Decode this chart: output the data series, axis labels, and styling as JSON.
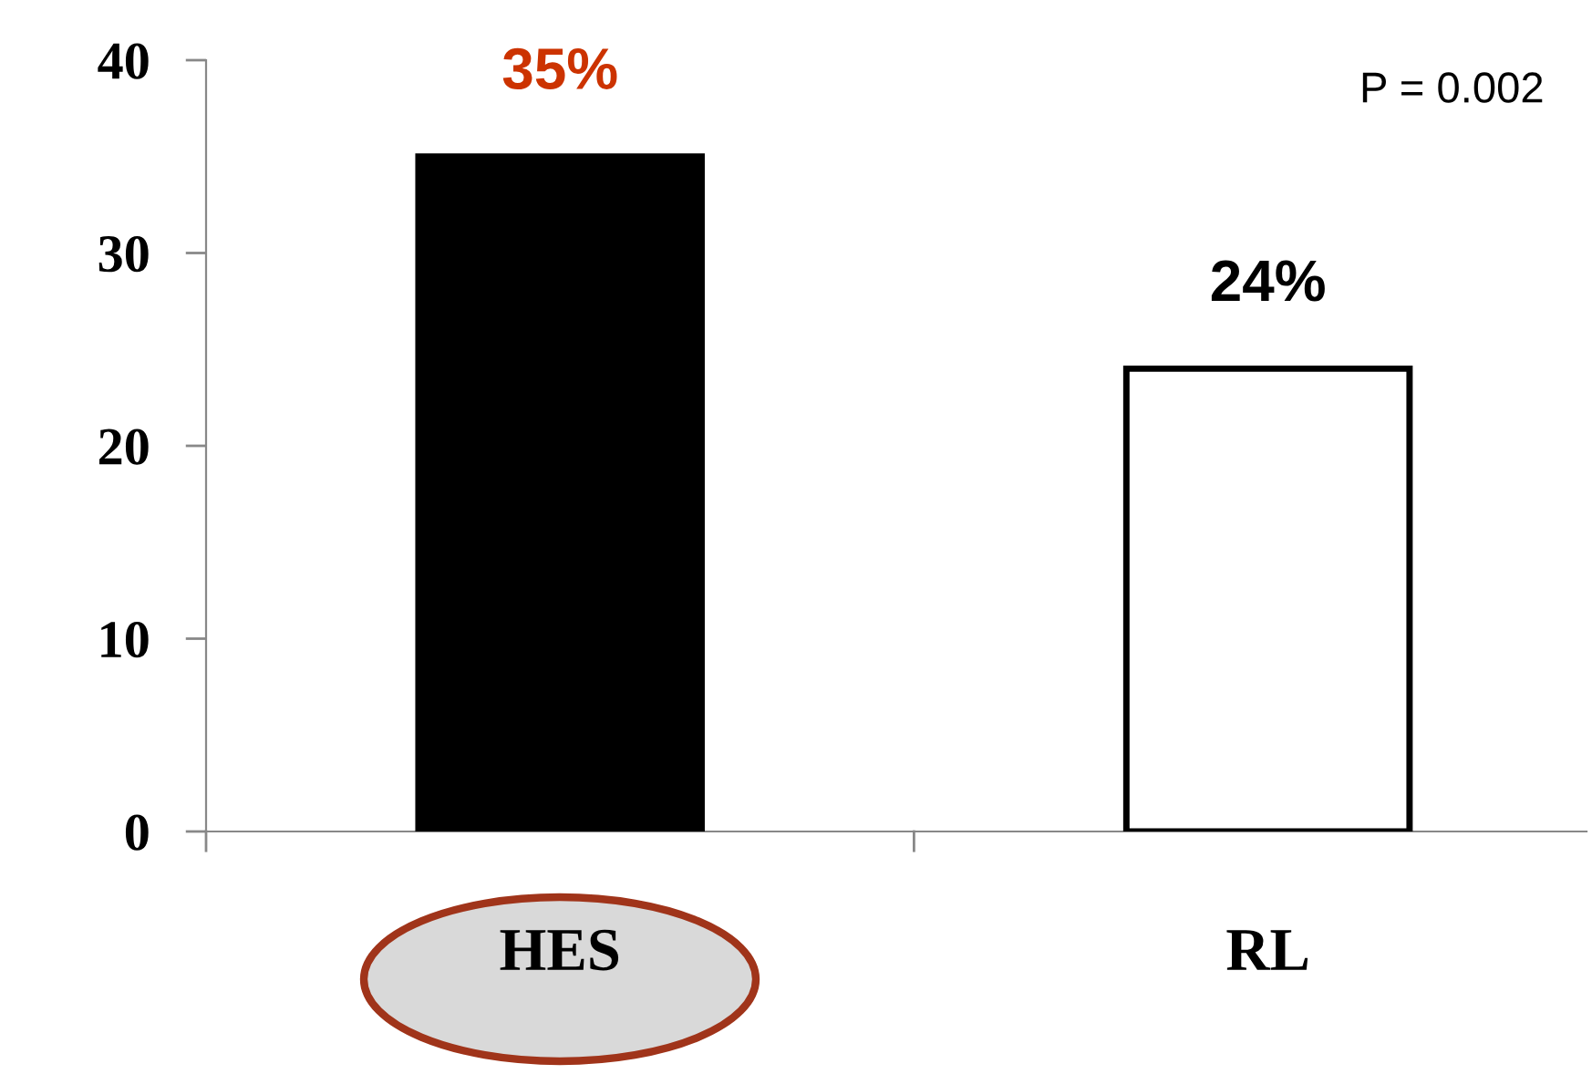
{
  "chart_data": {
    "type": "bar",
    "categories": [
      "HES",
      "RL"
    ],
    "values": [
      35,
      24
    ],
    "colors": [
      "#000000",
      "#ffffff"
    ],
    "value_labels": [
      "35%",
      "24%"
    ],
    "ylim": [
      0,
      40
    ],
    "yticks": [
      0,
      10,
      20,
      30,
      40
    ],
    "grid": false,
    "legend": false,
    "annotations": [
      "P = 0.002"
    ]
  }
}
